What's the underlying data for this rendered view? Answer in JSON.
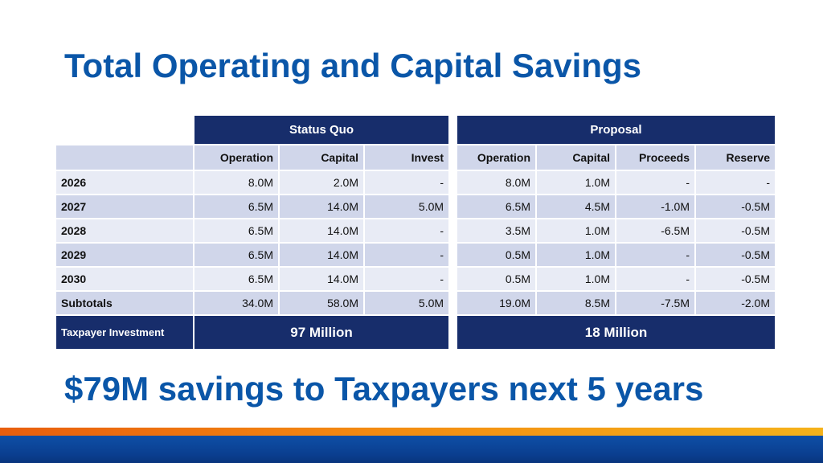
{
  "title": "Total Operating and Capital Savings",
  "tagline": "$79M savings to Taxpayers next 5 years",
  "status_quo": {
    "label": "Status Quo",
    "columns": [
      "Operation",
      "Capital",
      "Invest"
    ],
    "rows": [
      [
        "8.0M",
        "2.0M",
        "-"
      ],
      [
        "6.5M",
        "14.0M",
        "5.0M"
      ],
      [
        "6.5M",
        "14.0M",
        "-"
      ],
      [
        "6.5M",
        "14.0M",
        "-"
      ],
      [
        "6.5M",
        "14.0M",
        "-"
      ],
      [
        "34.0M",
        "58.0M",
        "5.0M"
      ]
    ],
    "total": "97 Million"
  },
  "proposal": {
    "label": "Proposal",
    "columns": [
      "Operation",
      "Capital",
      "Proceeds",
      "Reserve"
    ],
    "rows": [
      [
        "8.0M",
        "1.0M",
        "-",
        "-"
      ],
      [
        "6.5M",
        "4.5M",
        "-1.0M",
        "-0.5M"
      ],
      [
        "3.5M",
        "1.0M",
        "-6.5M",
        "-0.5M"
      ],
      [
        "0.5M",
        "1.0M",
        "-",
        "-0.5M"
      ],
      [
        "0.5M",
        "1.0M",
        "-",
        "-0.5M"
      ],
      [
        "19.0M",
        "8.5M",
        "-7.5M",
        "-2.0M"
      ]
    ],
    "total": "18 Million"
  },
  "row_labels": [
    "2026",
    "2027",
    "2028",
    "2029",
    "2030",
    "Subtotals"
  ],
  "footer_label": "Taxpayer Investment",
  "colors": {
    "title_blue": "#0a56a8",
    "header_navy": "#172d6b",
    "row_light": "#e8ebf5",
    "row_dark": "#d0d6ea",
    "band_orange": "#f38a10",
    "band_blue": "#0a3e8f"
  }
}
